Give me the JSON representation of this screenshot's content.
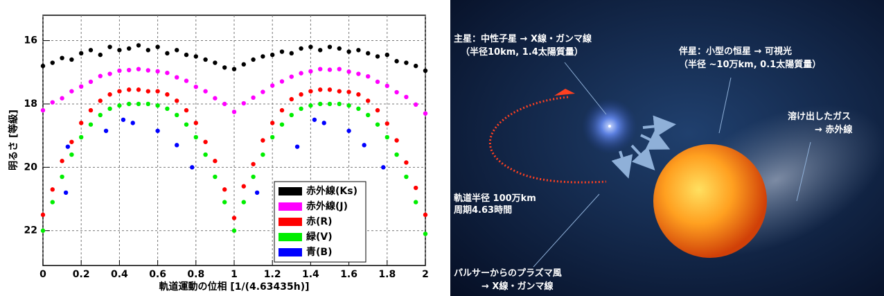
{
  "chart_data": {
    "type": "scatter",
    "x_label": "軌道運動の位相 [1/(4.63435h)]",
    "y_label": "明るさ [等級]",
    "xlim": [
      0,
      2
    ],
    "xticks": [
      0,
      0.2,
      0.4,
      0.6,
      0.8,
      1,
      1.2,
      1.4,
      1.6,
      1.8,
      2
    ],
    "ylim": [
      23.1,
      15.2
    ],
    "yticks": [
      16,
      18,
      20,
      22
    ],
    "grid": true,
    "legend": "lower right",
    "series": [
      {
        "name": "赤外線(Ks)",
        "color": "#000000",
        "x": [
          0,
          0.05,
          0.1,
          0.15,
          0.2,
          0.25,
          0.3,
          0.35,
          0.4,
          0.45,
          0.5,
          0.55,
          0.6,
          0.65,
          0.7,
          0.75,
          0.8,
          0.85,
          0.9,
          0.95,
          1,
          1.05,
          1.1,
          1.15,
          1.2,
          1.25,
          1.3,
          1.35,
          1.4,
          1.45,
          1.5,
          1.55,
          1.6,
          1.65,
          1.7,
          1.75,
          1.8,
          1.85,
          1.9,
          1.95,
          2
        ],
        "values": [
          16.8,
          16.7,
          16.55,
          16.6,
          16.4,
          16.3,
          16.45,
          16.2,
          16.3,
          16.25,
          16.15,
          16.3,
          16.2,
          16.4,
          16.3,
          16.45,
          16.5,
          16.6,
          16.7,
          16.85,
          16.9,
          16.75,
          16.6,
          16.5,
          16.45,
          16.35,
          16.4,
          16.25,
          16.2,
          16.3,
          16.2,
          16.25,
          16.35,
          16.3,
          16.4,
          16.5,
          16.45,
          16.65,
          16.7,
          16.8,
          16.95
        ]
      },
      {
        "name": "赤外線(J)",
        "color": "#ff00ff",
        "x": [
          0,
          0.05,
          0.1,
          0.15,
          0.2,
          0.25,
          0.3,
          0.35,
          0.4,
          0.45,
          0.5,
          0.55,
          0.6,
          0.65,
          0.7,
          0.75,
          0.8,
          0.85,
          0.9,
          0.95,
          1,
          1.05,
          1.1,
          1.15,
          1.2,
          1.25,
          1.3,
          1.35,
          1.4,
          1.45,
          1.5,
          1.55,
          1.6,
          1.65,
          1.7,
          1.75,
          1.8,
          1.85,
          1.9,
          1.95,
          2
        ],
        "values": [
          18.2,
          17.95,
          17.82,
          17.6,
          17.45,
          17.3,
          17.12,
          17.05,
          16.95,
          16.93,
          16.9,
          16.94,
          16.97,
          17.02,
          17.16,
          17.27,
          17.46,
          17.6,
          17.82,
          18.0,
          18.25,
          17.98,
          17.8,
          17.62,
          17.42,
          17.29,
          17.14,
          17.03,
          16.97,
          16.9,
          16.92,
          16.9,
          16.98,
          17.05,
          17.13,
          17.3,
          17.43,
          17.63,
          17.78,
          18.02,
          18.3
        ]
      },
      {
        "name": "赤(R)",
        "color": "#ff0000",
        "x": [
          0,
          0.05,
          0.1,
          0.15,
          0.2,
          0.25,
          0.3,
          0.35,
          0.4,
          0.45,
          0.5,
          0.55,
          0.6,
          0.65,
          0.7,
          0.75,
          0.8,
          0.85,
          0.9,
          0.95,
          1,
          1.05,
          1.1,
          1.15,
          1.2,
          1.25,
          1.3,
          1.35,
          1.4,
          1.45,
          1.5,
          1.55,
          1.6,
          1.65,
          1.7,
          1.75,
          1.8,
          1.85,
          1.9,
          1.95,
          2
        ],
        "values": [
          21.5,
          20.7,
          19.8,
          19.2,
          18.6,
          18.2,
          17.9,
          17.7,
          17.6,
          17.55,
          17.55,
          17.6,
          17.6,
          17.7,
          17.9,
          18.2,
          18.6,
          19.2,
          19.8,
          20.7,
          21.6,
          20.6,
          19.9,
          19.15,
          18.6,
          18.2,
          17.85,
          17.7,
          17.6,
          17.55,
          17.55,
          17.6,
          17.62,
          17.7,
          17.9,
          18.2,
          18.62,
          19.15,
          19.85,
          20.65,
          21.5
        ]
      },
      {
        "name": "緑(V)",
        "color": "#00ee00",
        "x": [
          0,
          0.05,
          0.1,
          0.15,
          0.2,
          0.25,
          0.3,
          0.35,
          0.4,
          0.45,
          0.5,
          0.55,
          0.6,
          0.65,
          0.7,
          0.75,
          0.8,
          0.85,
          0.9,
          0.95,
          1,
          1.05,
          1.1,
          1.15,
          1.2,
          1.25,
          1.3,
          1.35,
          1.4,
          1.45,
          1.5,
          1.55,
          1.6,
          1.65,
          1.7,
          1.75,
          1.8,
          1.85,
          1.9,
          1.95,
          2
        ],
        "values": [
          22.0,
          21.1,
          20.3,
          19.6,
          19.05,
          18.65,
          18.35,
          18.15,
          18.05,
          18.0,
          18.0,
          18.0,
          18.05,
          18.15,
          18.35,
          18.65,
          19.05,
          19.6,
          20.3,
          21.1,
          22.0,
          21.1,
          20.3,
          19.6,
          19.05,
          18.65,
          18.35,
          18.15,
          18.05,
          18.0,
          18.0,
          18.0,
          18.05,
          18.15,
          18.35,
          18.65,
          19.05,
          19.6,
          20.3,
          21.1,
          22.1
        ]
      },
      {
        "name": "青(B)",
        "color": "#0000ff",
        "x": [
          0.12,
          0.13,
          0.33,
          0.42,
          0.47,
          0.6,
          0.7,
          0.78,
          1.12,
          1.33,
          1.42,
          1.47,
          1.6,
          1.68,
          1.78
        ],
        "values": [
          20.8,
          19.35,
          18.85,
          18.5,
          18.6,
          18.85,
          19.3,
          20.0,
          20.8,
          19.35,
          18.5,
          18.6,
          18.85,
          19.3,
          20.0
        ]
      }
    ]
  },
  "illustration": {
    "labels": [
      "主星：中性子星 → X線・ガンマ線",
      "（半径10km, 1.4太陽質量）",
      "伴星：小型の恒星 → 可視光",
      "（半径 ~10万km, 0.1太陽質量）",
      "溶け出したガス",
      "→ 赤外線",
      "軌道半径 100万km",
      "周期4.63時間",
      "パルサーからのプラズマ風",
      "→ X線・ガンマ線"
    ]
  }
}
